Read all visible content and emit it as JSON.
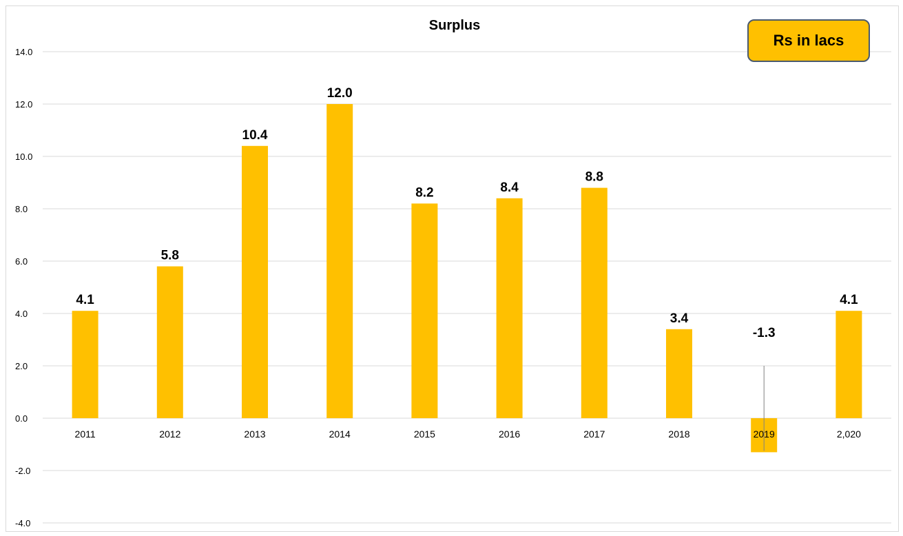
{
  "chart_data": {
    "type": "bar",
    "title": "Surplus",
    "xlabel": "",
    "ylabel": "",
    "categories": [
      "2011",
      "2012",
      "2013",
      "2014",
      "2015",
      "2016",
      "2017",
      "2018",
      "2019",
      "2,020"
    ],
    "values": [
      4.1,
      5.8,
      10.4,
      12.0,
      8.2,
      8.4,
      8.8,
      3.4,
      -1.3,
      4.1
    ],
    "data_labels": [
      "4.1",
      "5.8",
      "10.4",
      "12.0",
      "8.2",
      "8.4",
      "8.8",
      "3.4",
      "-1.3",
      "4.1"
    ],
    "ylim": [
      -4.0,
      14.0
    ],
    "yticks": [
      "14.0",
      "12.0",
      "10.0",
      "8.0",
      "6.0",
      "4.0",
      "2.0",
      "0.0",
      "-2.0",
      "-4.0"
    ],
    "ytick_values": [
      14,
      12,
      10,
      8,
      6,
      4,
      2,
      0,
      -2,
      -4
    ],
    "grid": true,
    "bar_color": "#ffc000",
    "gridline_color": "#d9d9d9"
  },
  "unit_badge": {
    "text": "Rs in lacs",
    "fill": "#ffc000",
    "border": "#4a5a6f"
  }
}
